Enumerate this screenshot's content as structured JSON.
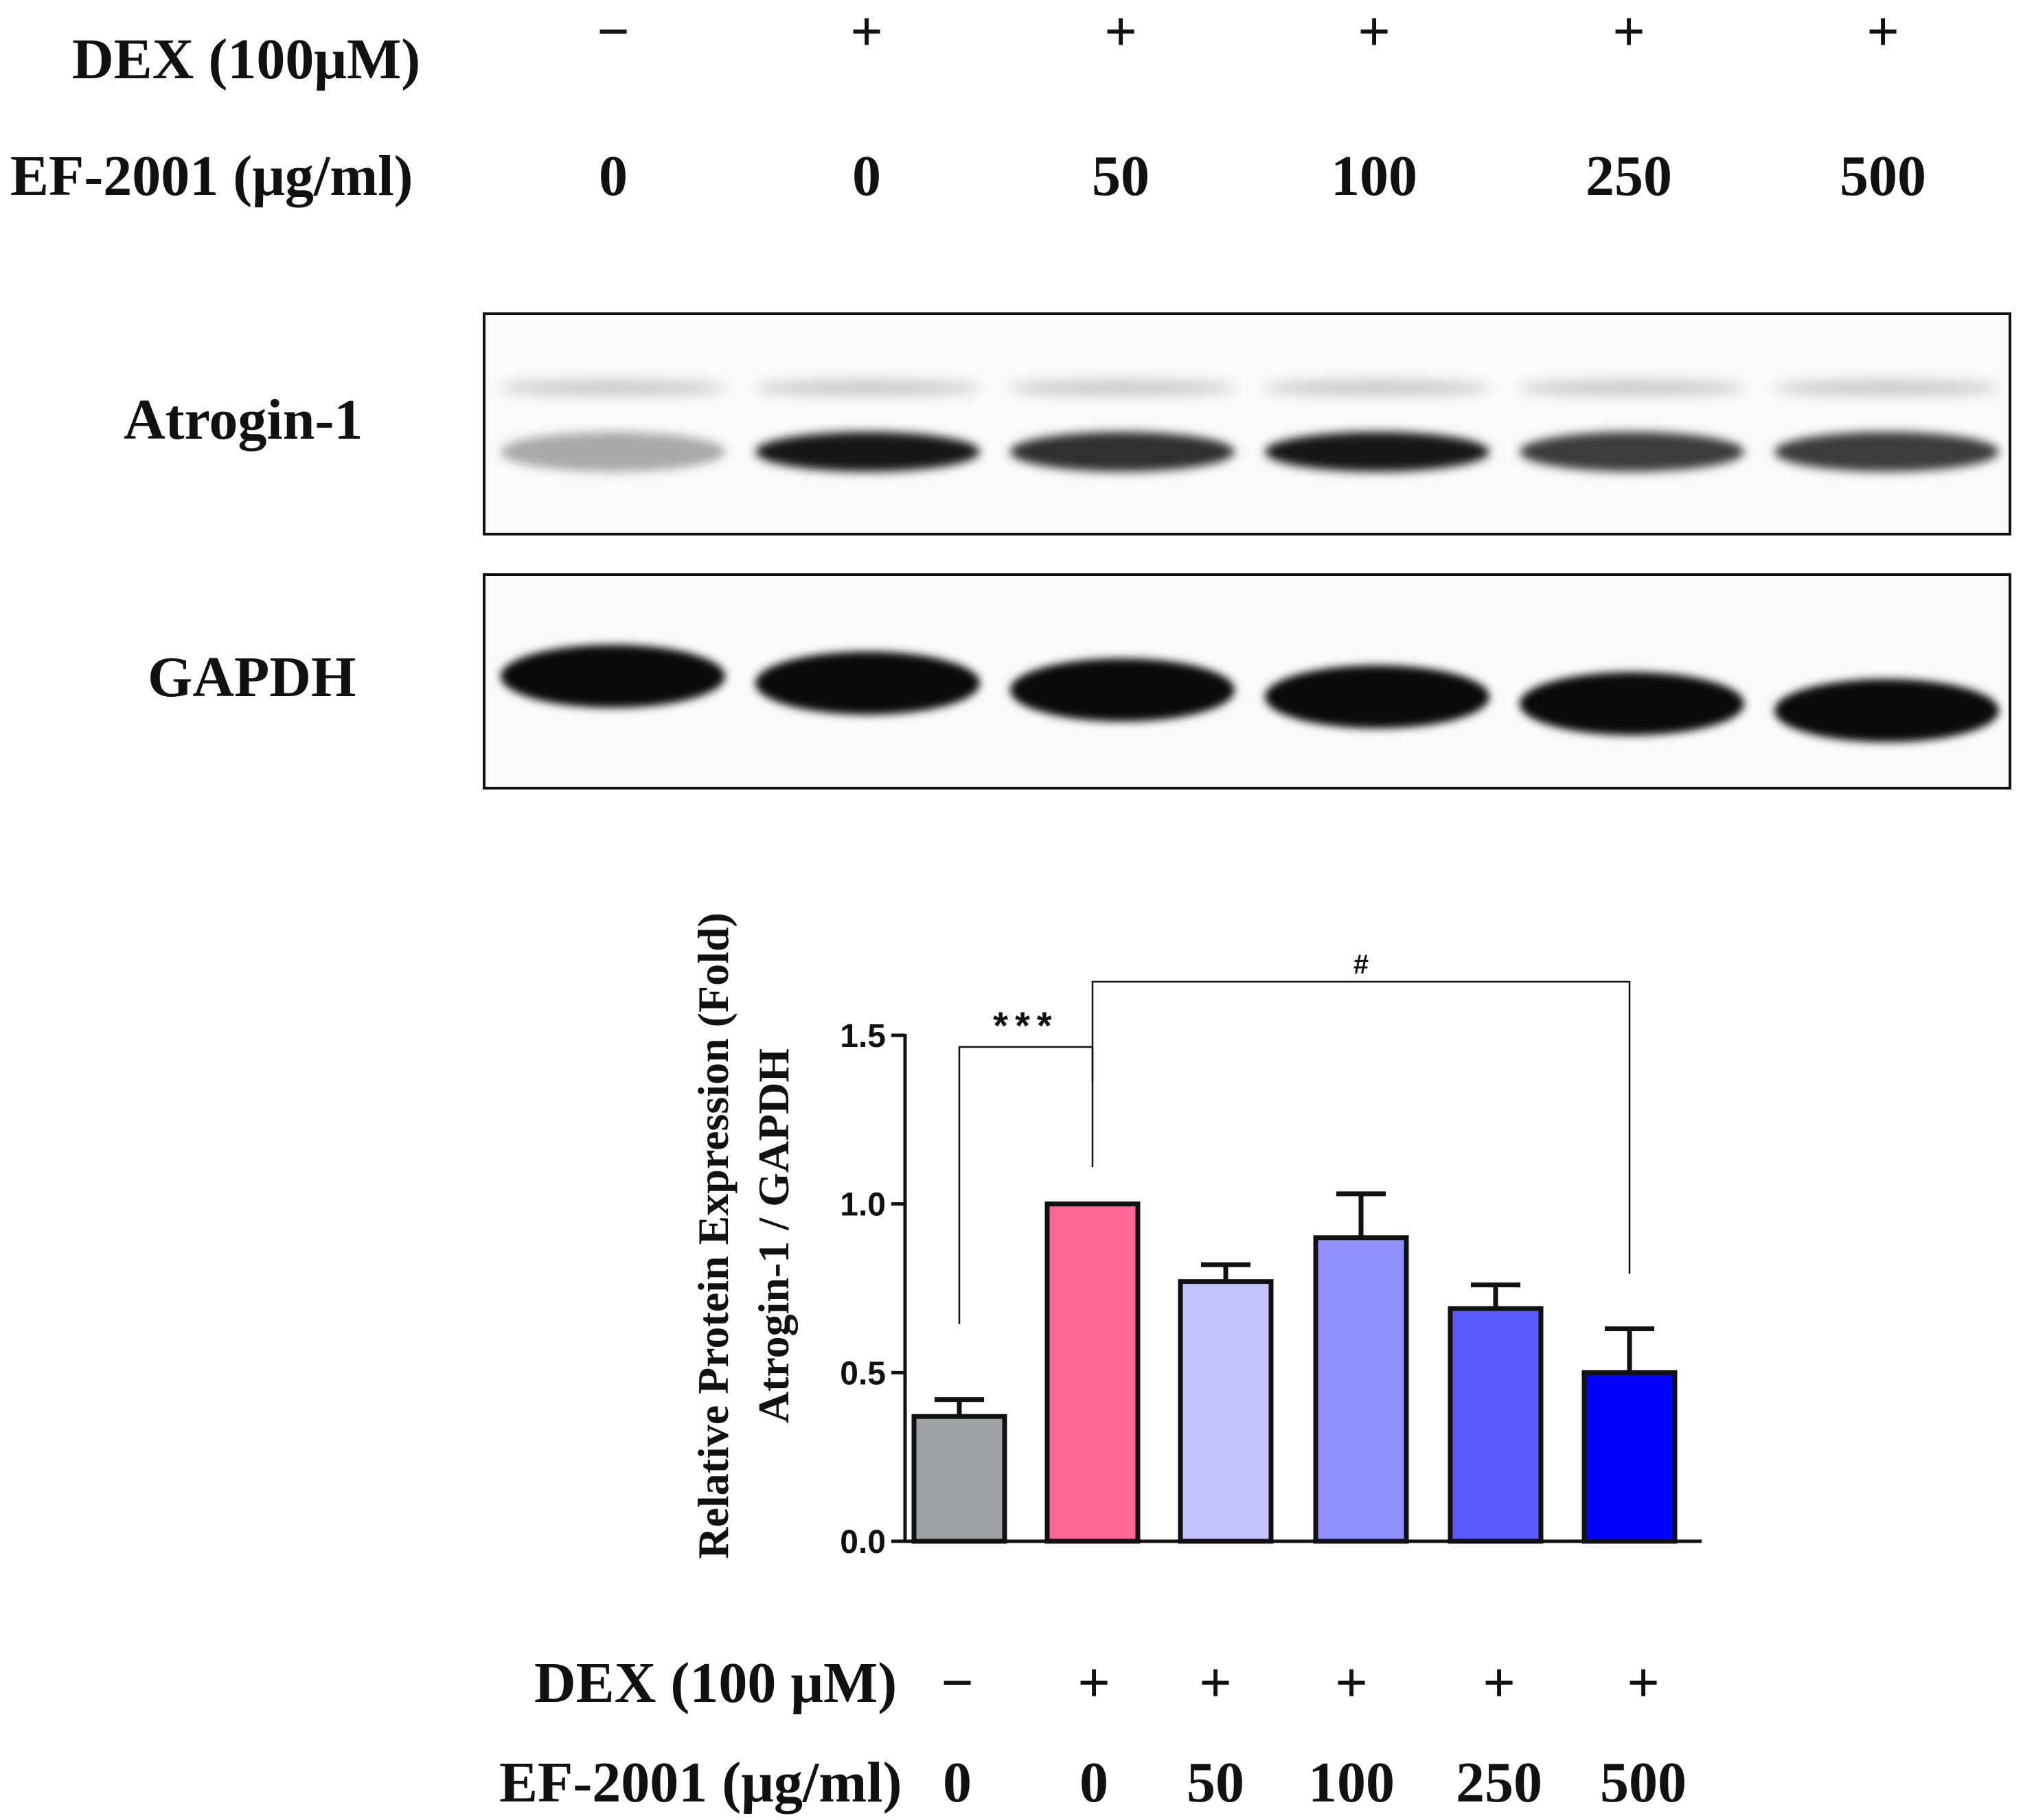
{
  "treatments": {
    "lanes": 6,
    "dex_label": "DEX (100μM)",
    "dex_label_bottom": "DEX (100 μM)",
    "ef_label": "EF-2001 (μg/ml)",
    "dex_signs": [
      "−",
      "+",
      "+",
      "+",
      "+",
      "+"
    ],
    "ef_doses": [
      "0",
      "0",
      "50",
      "100",
      "250",
      "500"
    ]
  },
  "blots": {
    "atrogin_label": "Atrogin-1",
    "gapdh_label": "GAPDH",
    "atrogin_band_intensity": [
      0.35,
      0.95,
      0.85,
      0.95,
      0.8,
      0.8
    ],
    "gapdh_band_intensity": [
      1,
      1,
      1,
      1,
      1,
      1
    ]
  },
  "chart_data": {
    "type": "bar",
    "categories": [
      "0",
      "0",
      "50",
      "100",
      "250",
      "500"
    ],
    "values": [
      0.37,
      1.0,
      0.77,
      0.9,
      0.69,
      0.5
    ],
    "errors": [
      0.05,
      0.0,
      0.05,
      0.13,
      0.07,
      0.13
    ],
    "colors": [
      "#a0a0a8",
      "#ff6594",
      "#c3c3ff",
      "#8f8fff",
      "#5a5aff",
      "#0000ff"
    ],
    "ylabel_line1": "Relative Protein Expression  (Fold)",
    "ylabel_line2": "Atrogin-1 / GAPDH",
    "ylim": [
      0,
      1.5
    ],
    "yticks": [
      "0.0",
      "0.5",
      "1.0",
      "1.5"
    ],
    "grid": false,
    "significance": [
      {
        "from": 0,
        "to": 1,
        "label": "***"
      },
      {
        "from": 1,
        "to": 5,
        "label": "#"
      }
    ]
  }
}
